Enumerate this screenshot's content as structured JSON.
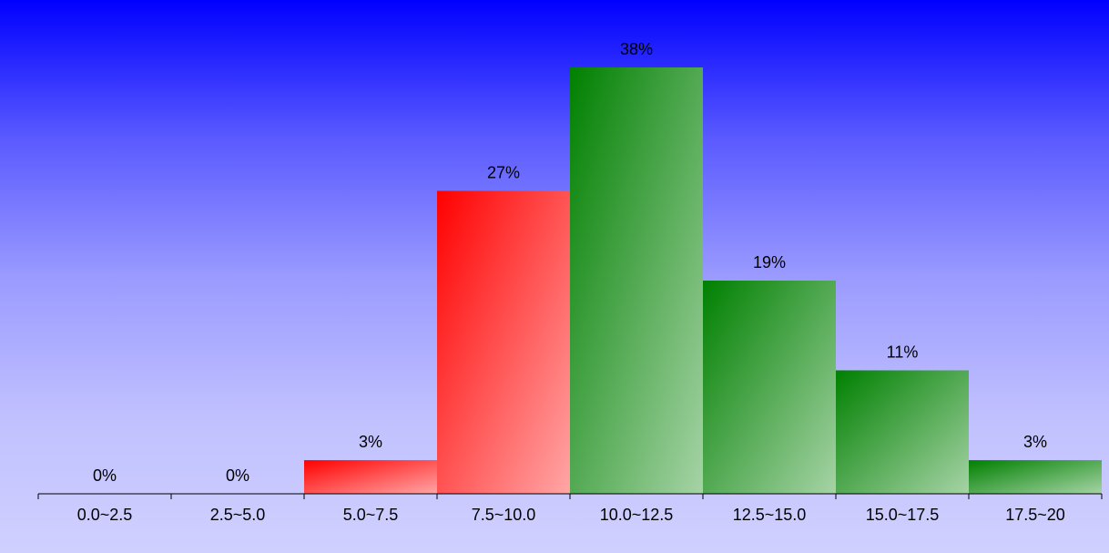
{
  "chart_data": {
    "type": "bar",
    "categories": [
      "0.0~2.5",
      "2.5~5.0",
      "5.0~7.5",
      "7.5~10.0",
      "10.0~12.5",
      "12.5~15.0",
      "15.0~17.5",
      "17.5~20"
    ],
    "values": [
      0,
      0,
      3,
      27,
      38,
      19,
      11,
      3
    ],
    "data_labels": [
      "0%",
      "0%",
      "3%",
      "27%",
      "38%",
      "19%",
      "11%",
      "3%"
    ],
    "bar_colors": [
      "#ff0000",
      "#ff0000",
      "#ff0000",
      "#ff0000",
      "#008000",
      "#008000",
      "#008000",
      "#008000"
    ],
    "ylim": [
      0,
      38
    ],
    "grid": false,
    "title": "",
    "xlabel": "",
    "ylabel": ""
  }
}
